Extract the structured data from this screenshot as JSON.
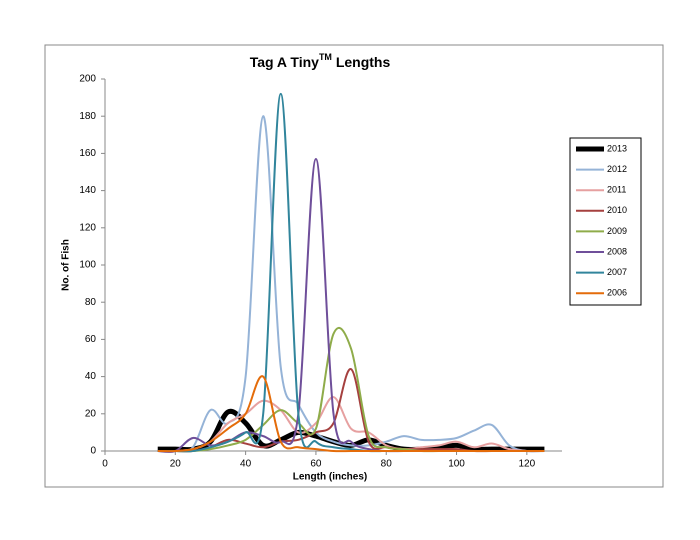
{
  "chart_data": {
    "type": "line",
    "smooth": true,
    "title_parts": [
      "Tag A Tiny",
      "TM",
      " Lengths"
    ],
    "x_label": "Length (inches)",
    "y_label": "No. of Fish",
    "x": [
      15,
      20,
      25,
      30,
      35,
      40,
      45,
      50,
      55,
      60,
      65,
      70,
      75,
      80,
      85,
      90,
      95,
      100,
      105,
      110,
      115,
      120,
      125
    ],
    "xlim": [
      0,
      130
    ],
    "xticks": [
      0,
      20,
      40,
      60,
      80,
      100,
      120
    ],
    "ylim": [
      0,
      200
    ],
    "yticks": [
      0,
      20,
      40,
      60,
      80,
      100,
      120,
      140,
      160,
      180,
      200
    ],
    "legend": "right",
    "series": [
      {
        "name": "2013",
        "color": "#000000",
        "values": [
          1,
          1,
          1,
          5,
          21,
          15,
          3,
          6,
          10,
          8,
          5,
          3,
          6,
          3,
          1,
          1,
          2,
          3,
          1,
          1,
          1,
          1,
          1
        ]
      },
      {
        "name": "2012",
        "color": "#95b3d7",
        "values": [
          0,
          0,
          2,
          22,
          15,
          40,
          180,
          45,
          25,
          10,
          5,
          3,
          3,
          5,
          8,
          6,
          6,
          7,
          11,
          14,
          3,
          0,
          0
        ]
      },
      {
        "name": "2011",
        "color": "#e6a0a0",
        "values": [
          0,
          0,
          1,
          5,
          15,
          20,
          27,
          22,
          10,
          15,
          29,
          12,
          10,
          3,
          1,
          2,
          3,
          5,
          2,
          4,
          1,
          0,
          0
        ]
      },
      {
        "name": "2010",
        "color": "#a5403f",
        "values": [
          0,
          0,
          0,
          2,
          6,
          4,
          2,
          5,
          6,
          10,
          15,
          44,
          5,
          2,
          1,
          1,
          1,
          1,
          0,
          0,
          0,
          0,
          0
        ]
      },
      {
        "name": "2009",
        "color": "#8fac4a",
        "values": [
          0,
          0,
          0,
          1,
          3,
          6,
          14,
          22,
          15,
          12,
          63,
          55,
          8,
          2,
          1,
          0,
          0,
          0,
          0,
          0,
          0,
          0,
          0
        ]
      },
      {
        "name": "2008",
        "color": "#6f4f9a",
        "values": [
          0,
          0,
          7,
          3,
          5,
          10,
          8,
          5,
          20,
          157,
          20,
          5,
          1,
          0,
          0,
          0,
          0,
          0,
          0,
          0,
          0,
          0,
          0
        ]
      },
      {
        "name": "2007",
        "color": "#31859c",
        "values": [
          0,
          0,
          0,
          2,
          5,
          10,
          20,
          192,
          20,
          5,
          2,
          1,
          0,
          0,
          0,
          0,
          0,
          0,
          0,
          0,
          0,
          0,
          0
        ]
      },
      {
        "name": "2006",
        "color": "#e46c0a",
        "values": [
          0,
          0,
          1,
          5,
          12,
          20,
          40,
          5,
          2,
          1,
          0,
          0,
          0,
          0,
          0,
          0,
          0,
          0,
          0,
          0,
          0,
          0,
          0
        ]
      }
    ]
  }
}
